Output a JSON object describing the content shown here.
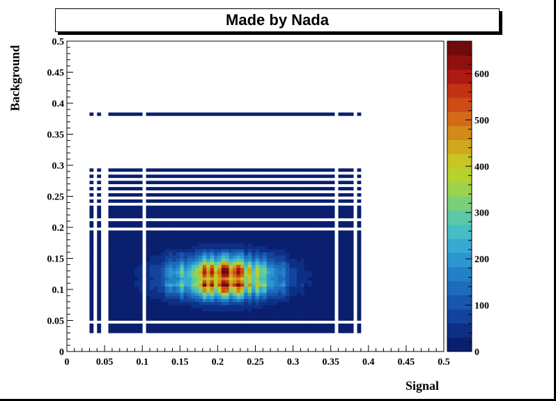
{
  "title": "Made by Nada",
  "chart_data": {
    "type": "heatmap",
    "title": "Made by Nada",
    "xlabel": "Signal",
    "ylabel": "Background",
    "xlim": [
      0,
      0.5
    ],
    "ylim": [
      0,
      0.5
    ],
    "x_ticks": [
      "0",
      "0.05",
      "0.1",
      "0.15",
      "0.2",
      "0.25",
      "0.3",
      "0.35",
      "0.4",
      "0.45",
      "0.5"
    ],
    "y_ticks": [
      "0",
      "0.05",
      "0.1",
      "0.15",
      "0.2",
      "0.25",
      "0.3",
      "0.35",
      "0.4",
      "0.45",
      "0.5"
    ],
    "colorbar": {
      "range": [
        0,
        670
      ],
      "ticks": [
        "0",
        "100",
        "200",
        "300",
        "400",
        "500",
        "600"
      ],
      "palette": [
        "#0a1f6e",
        "#0d2f85",
        "#13449d",
        "#1757ad",
        "#1d6cbc",
        "#2280c6",
        "#2b96cf",
        "#36aad3",
        "#47bdc6",
        "#5cc8a8",
        "#7ccf7a",
        "#9bd34f",
        "#b5d22e",
        "#c8c621",
        "#d0a81d",
        "#d4891b",
        "#d36a18",
        "#cf4b16",
        "#c33114",
        "#ad1a12",
        "#901010",
        "#700b0b"
      ]
    },
    "bins": {
      "nx": 100,
      "ny": 100,
      "x_start": 0,
      "x_end": 0.5,
      "y_start": 0,
      "y_end": 0.5
    },
    "description_regions": {
      "filled_x": [
        0.028,
        0.39
      ],
      "filled_y": [
        0.028,
        0.385
      ],
      "hotspot_center": [
        0.21,
        0.12
      ],
      "peak_value": 650
    }
  }
}
